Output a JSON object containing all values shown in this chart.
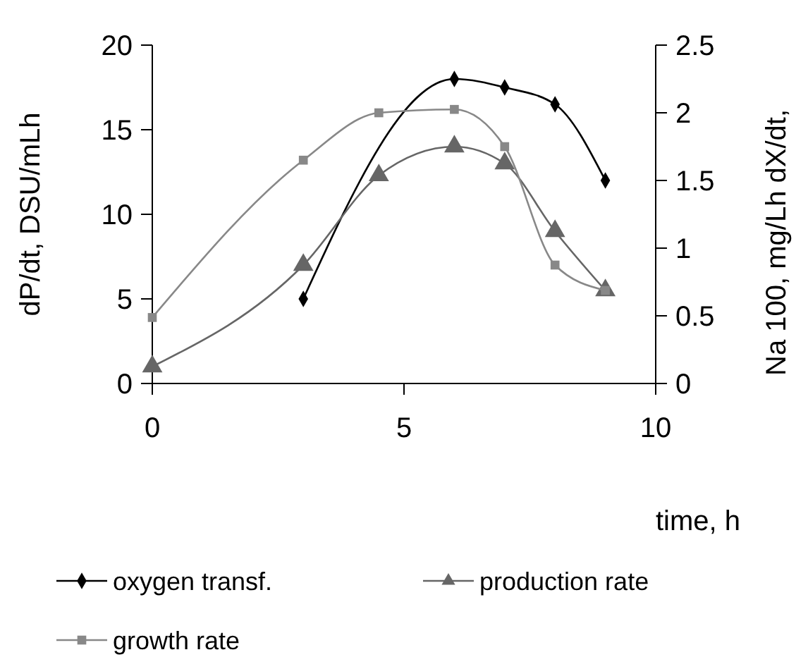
{
  "chart_data": {
    "type": "line",
    "xlabel": "time, h",
    "ylabel": "dP/dt, DSU/mLh",
    "y2label": "Na 100, mg/Lh  dX/dt,",
    "xlim": [
      0,
      10
    ],
    "xticks": [
      0,
      5,
      10
    ],
    "ylim": [
      0,
      20
    ],
    "yticks": [
      0,
      5,
      10,
      15,
      20
    ],
    "y2lim": [
      0,
      2.5
    ],
    "y2ticks": [
      0,
      0.5,
      1,
      1.5,
      2,
      2.5
    ],
    "grid": false,
    "legend": "bottom",
    "series": [
      {
        "name": "oxygen transf.",
        "color": "#000000",
        "marker": "diamond",
        "x": [
          3,
          6,
          7,
          8,
          9
        ],
        "values": [
          5,
          18,
          17.5,
          16.5,
          12
        ]
      },
      {
        "name": "production rate",
        "color": "#666666",
        "marker": "triangle",
        "x": [
          0,
          3,
          4.5,
          6,
          7,
          8,
          9
        ],
        "values": [
          1,
          7,
          12.3,
          14,
          13,
          9,
          5.5
        ]
      },
      {
        "name": "growth rate",
        "color": "#888888",
        "marker": "square",
        "x": [
          0,
          3,
          4.5,
          6,
          7,
          8,
          9
        ],
        "values": [
          3.9,
          13.2,
          16,
          16.2,
          14,
          7,
          5.5
        ]
      }
    ]
  }
}
